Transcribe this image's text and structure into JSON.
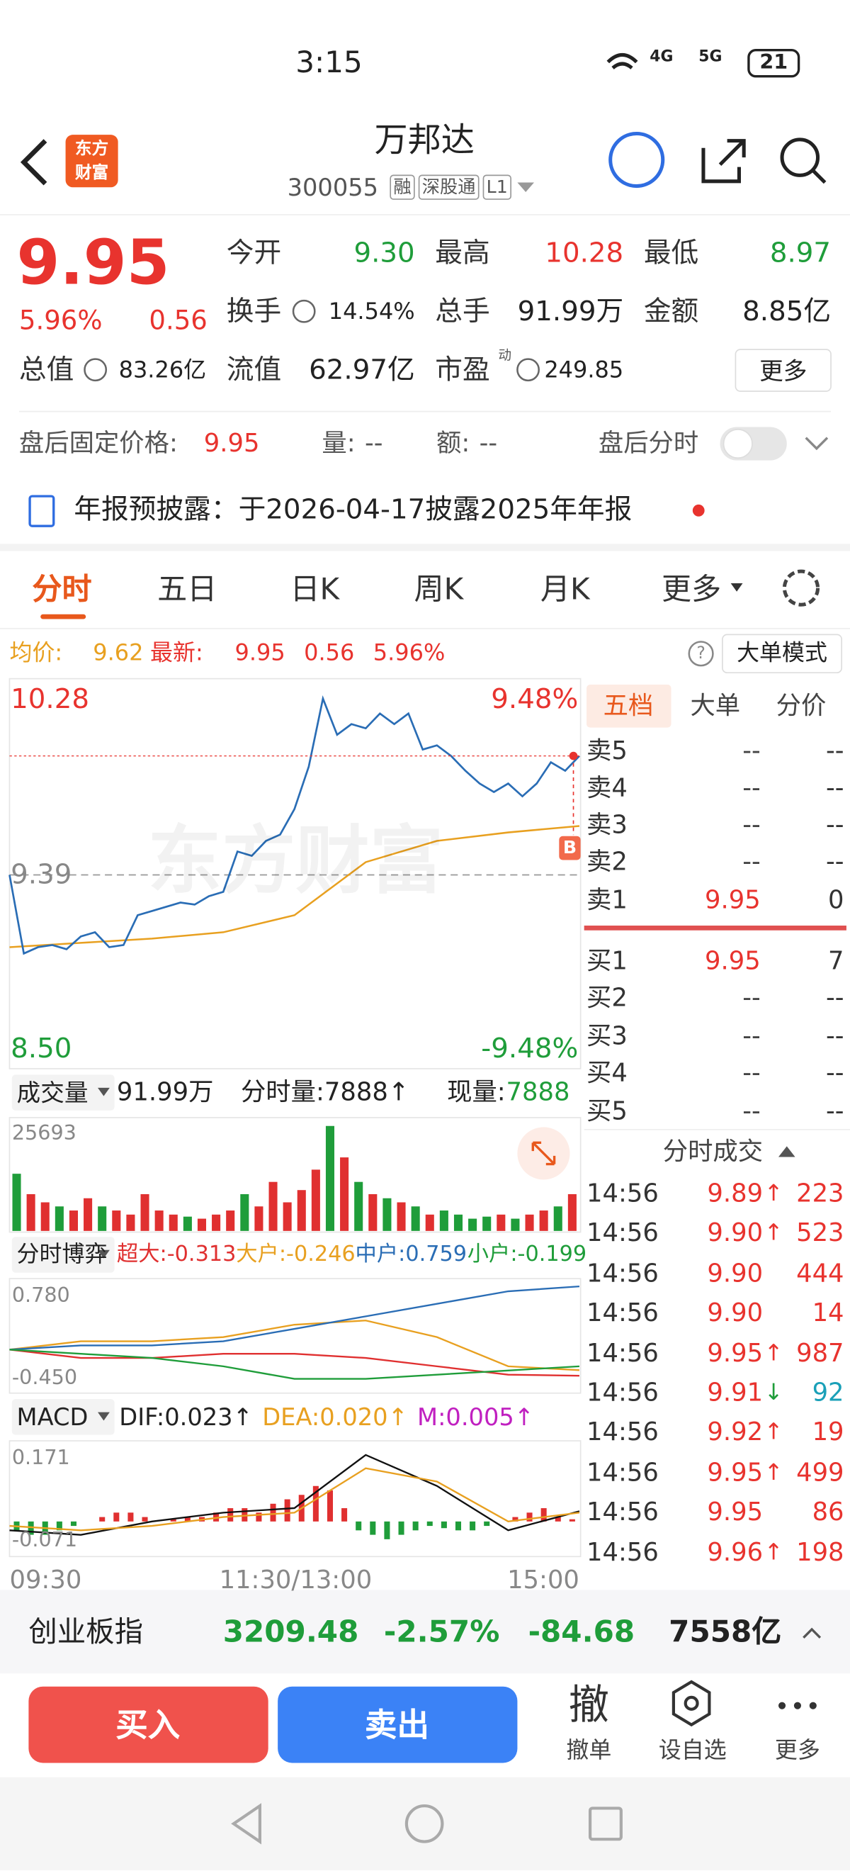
{
  "status": {
    "time": "3:15",
    "net1": "4G",
    "net2": "5G",
    "battery": "21"
  },
  "header": {
    "logo": [
      "东方",
      "财富"
    ],
    "title": "万邦达",
    "code": "300055",
    "tags": [
      "融",
      "深股通",
      "L1"
    ]
  },
  "quote": {
    "price": "9.95",
    "pct": "5.96%",
    "change": "0.56",
    "pe_sup": "动",
    "more": "更多",
    "fields": [
      {
        "label": "今开",
        "value": "9.30",
        "color": "#1f9d3a"
      },
      {
        "label": "最高",
        "value": "10.28",
        "color": "#e8332e"
      },
      {
        "label": "最低",
        "value": "8.97",
        "color": "#1f9d3a"
      },
      {
        "label": "换手",
        "value": "14.54%",
        "color": "#222222"
      },
      {
        "label": "总手",
        "value": "91.99万",
        "color": "#222222"
      },
      {
        "label": "金额",
        "value": "8.85亿",
        "color": "#222222"
      },
      {
        "label": "总值",
        "value": "83.26亿",
        "color": "#222222"
      },
      {
        "label": "流值",
        "value": "62.97亿",
        "color": "#222222"
      },
      {
        "label": "市盈",
        "value": "249.85",
        "color": "#222222"
      }
    ]
  },
  "after_hours": {
    "label": "盘后固定价格:",
    "price": "9.95",
    "vol_label": "量:",
    "vol": "--",
    "amt_label": "额:",
    "amt": "--",
    "toggle": "盘后分时"
  },
  "notice": {
    "text": "年报预披露：于2026-04-17披露2025年年报"
  },
  "tabs": {
    "items": [
      "分时",
      "五日",
      "日K",
      "周K",
      "月K",
      "更多"
    ],
    "active": 0
  },
  "info": {
    "avg_label": "均价:",
    "avg": "9.62",
    "last_label": "最新:",
    "last": "9.95",
    "change": "0.56",
    "pct": "5.96%",
    "help": "?",
    "mode": "大单模式"
  },
  "intraday": {
    "type": "line",
    "ylim": [
      8.5,
      10.28
    ],
    "yticks": [
      10.28,
      9.39,
      {
        "value": 8.5,
        "label": "8.50"
      }
    ],
    "pct_top": "9.48%",
    "pct_bottom": "-9.48%",
    "watermark": "东方财富",
    "marker": "B",
    "price_color": "#2a6db5",
    "avg_color": "#e8a020",
    "price": [
      9.39,
      9.02,
      9.05,
      9.06,
      9.04,
      9.1,
      9.12,
      9.05,
      9.06,
      9.2,
      9.22,
      9.24,
      9.26,
      9.25,
      9.29,
      9.31,
      9.5,
      9.48,
      9.55,
      9.58,
      9.7,
      9.9,
      10.22,
      10.05,
      10.1,
      10.08,
      10.15,
      10.1,
      10.15,
      9.98,
      10.0,
      9.95,
      9.88,
      9.82,
      9.78,
      9.82,
      9.76,
      9.82,
      9.92,
      9.88,
      9.95
    ],
    "avg": [
      9.05,
      9.07,
      9.09,
      9.12,
      9.2,
      9.45,
      9.55,
      9.59,
      9.62
    ],
    "xticks": [
      "09:30",
      "11:30/13:00",
      "15:00"
    ]
  },
  "volume": {
    "type": "bar",
    "selector": "成交量",
    "total": "91.99万",
    "tick": "分时量:7888↑",
    "now_label": "现量:",
    "now": "7888",
    "ylim": [
      0,
      25693
    ],
    "yticks": [
      25693
    ],
    "values": [
      14000,
      9000,
      7000,
      6000,
      5000,
      8000,
      6000,
      5000,
      4000,
      9000,
      5000,
      4000,
      3500,
      3000,
      4000,
      5000,
      9000,
      6000,
      12000,
      7000,
      10000,
      15000,
      25693,
      18000,
      12000,
      9000,
      8000,
      7000,
      6000,
      4000,
      5000,
      4000,
      3000,
      3500,
      4000,
      3000,
      4000,
      5000,
      6000,
      9000
    ]
  },
  "flow": {
    "type": "line",
    "selector": "分时博弈",
    "ylim": [
      -0.45,
      0.78
    ],
    "yticks": [
      {
        "value": 0.78,
        "label": "0.780"
      },
      {
        "value": -0.45,
        "label": "-0.450"
      }
    ],
    "series": [
      {
        "name": "超大:-0.313",
        "color": "#e03030",
        "values": [
          0,
          -0.1,
          -0.1,
          -0.05,
          -0.05,
          -0.1,
          -0.2,
          -0.3,
          -0.313
        ]
      },
      {
        "name": "大户:-0.246",
        "color": "#e8a020",
        "values": [
          0,
          0.1,
          0.1,
          0.15,
          0.3,
          0.35,
          0.15,
          -0.2,
          -0.246
        ]
      },
      {
        "name": "中户:0.759",
        "color": "#2a6db5",
        "values": [
          0,
          0.05,
          0.05,
          0.1,
          0.25,
          0.4,
          0.55,
          0.7,
          0.759
        ]
      },
      {
        "name": "小户:-0.199",
        "color": "#1f9d3a",
        "values": [
          0,
          -0.05,
          -0.1,
          -0.2,
          -0.35,
          -0.35,
          -0.3,
          -0.25,
          -0.199
        ]
      }
    ]
  },
  "macd": {
    "type": "bar",
    "selector": "MACD",
    "ylim": [
      -0.071,
      0.171
    ],
    "yticks": [
      0.171,
      -0.071
    ],
    "m_label": "M:0.005↑",
    "m_color": "#c020c0",
    "series": [
      {
        "name": "DIF:0.023↑",
        "color": "#111111",
        "values": [
          -0.02,
          -0.03,
          0,
          0.02,
          0.03,
          0.15,
          0.08,
          -0.02,
          0.023
        ]
      },
      {
        "name": "DEA:0.020↑",
        "color": "#e8a020",
        "values": [
          -0.01,
          -0.02,
          -0.01,
          0.01,
          0.02,
          0.12,
          0.09,
          0,
          0.02
        ]
      }
    ],
    "values": [
      -0.02,
      -0.03,
      -0.03,
      -0.02,
      -0.01,
      0,
      0.01,
      0.02,
      0.02,
      0.01,
      0,
      0.005,
      0.01,
      0.01,
      0.02,
      0.03,
      0.03,
      0.02,
      0.04,
      0.05,
      0.06,
      0.08,
      0.07,
      0.03,
      -0.02,
      -0.03,
      -0.04,
      -0.03,
      -0.02,
      -0.01,
      -0.015,
      -0.02,
      -0.02,
      -0.01,
      0,
      0.01,
      0.02,
      0.03,
      0.01,
      0.005
    ]
  },
  "book": {
    "tabs": [
      "五档",
      "大单",
      "分价"
    ],
    "asks": [
      {
        "label": "卖5",
        "price": "--",
        "volume": "--"
      },
      {
        "label": "卖4",
        "price": "--",
        "volume": "--"
      },
      {
        "label": "卖3",
        "price": "--",
        "volume": "--"
      },
      {
        "label": "卖2",
        "price": "--",
        "volume": "--"
      },
      {
        "label": "卖1",
        "price": "9.95",
        "volume": "0"
      }
    ],
    "bids": [
      {
        "label": "买1",
        "price": "9.95",
        "volume": "7"
      },
      {
        "label": "买2",
        "price": "--",
        "volume": "--"
      },
      {
        "label": "买3",
        "price": "--",
        "volume": "--"
      },
      {
        "label": "买4",
        "price": "--",
        "volume": "--"
      },
      {
        "label": "买5",
        "price": "--",
        "volume": "--"
      }
    ]
  },
  "trades": {
    "title": "分时成交",
    "rows": [
      {
        "time": "14:56",
        "price": "9.89",
        "dir": "↑",
        "volume": "223"
      },
      {
        "time": "14:56",
        "price": "9.90",
        "dir": "↑",
        "volume": "523"
      },
      {
        "time": "14:56",
        "price": "9.90",
        "volume": "444"
      },
      {
        "time": "14:56",
        "price": "9.90",
        "volume": "14"
      },
      {
        "time": "14:56",
        "price": "9.95",
        "dir": "↑",
        "volume": "987"
      },
      {
        "time": "14:56",
        "price": "9.91",
        "dir": "↓",
        "volume": "92"
      },
      {
        "time": "14:56",
        "price": "9.92",
        "dir": "↑",
        "volume": "19"
      },
      {
        "time": "14:56",
        "price": "9.95",
        "dir": "↑",
        "volume": "499"
      },
      {
        "time": "14:56",
        "price": "9.95",
        "volume": "86"
      },
      {
        "time": "14:56",
        "price": "9.96",
        "dir": "↑",
        "volume": "198"
      }
    ]
  },
  "index": {
    "name": "创业板指",
    "value": "3209.48",
    "pct": "-2.57%",
    "change": "-84.68",
    "amount": "7558亿"
  },
  "actions": {
    "buy": "买入",
    "sell": "卖出",
    "items": [
      {
        "icon": "撤",
        "label": "撤单"
      },
      {
        "label": "设自选"
      },
      {
        "label": "更多"
      }
    ]
  }
}
